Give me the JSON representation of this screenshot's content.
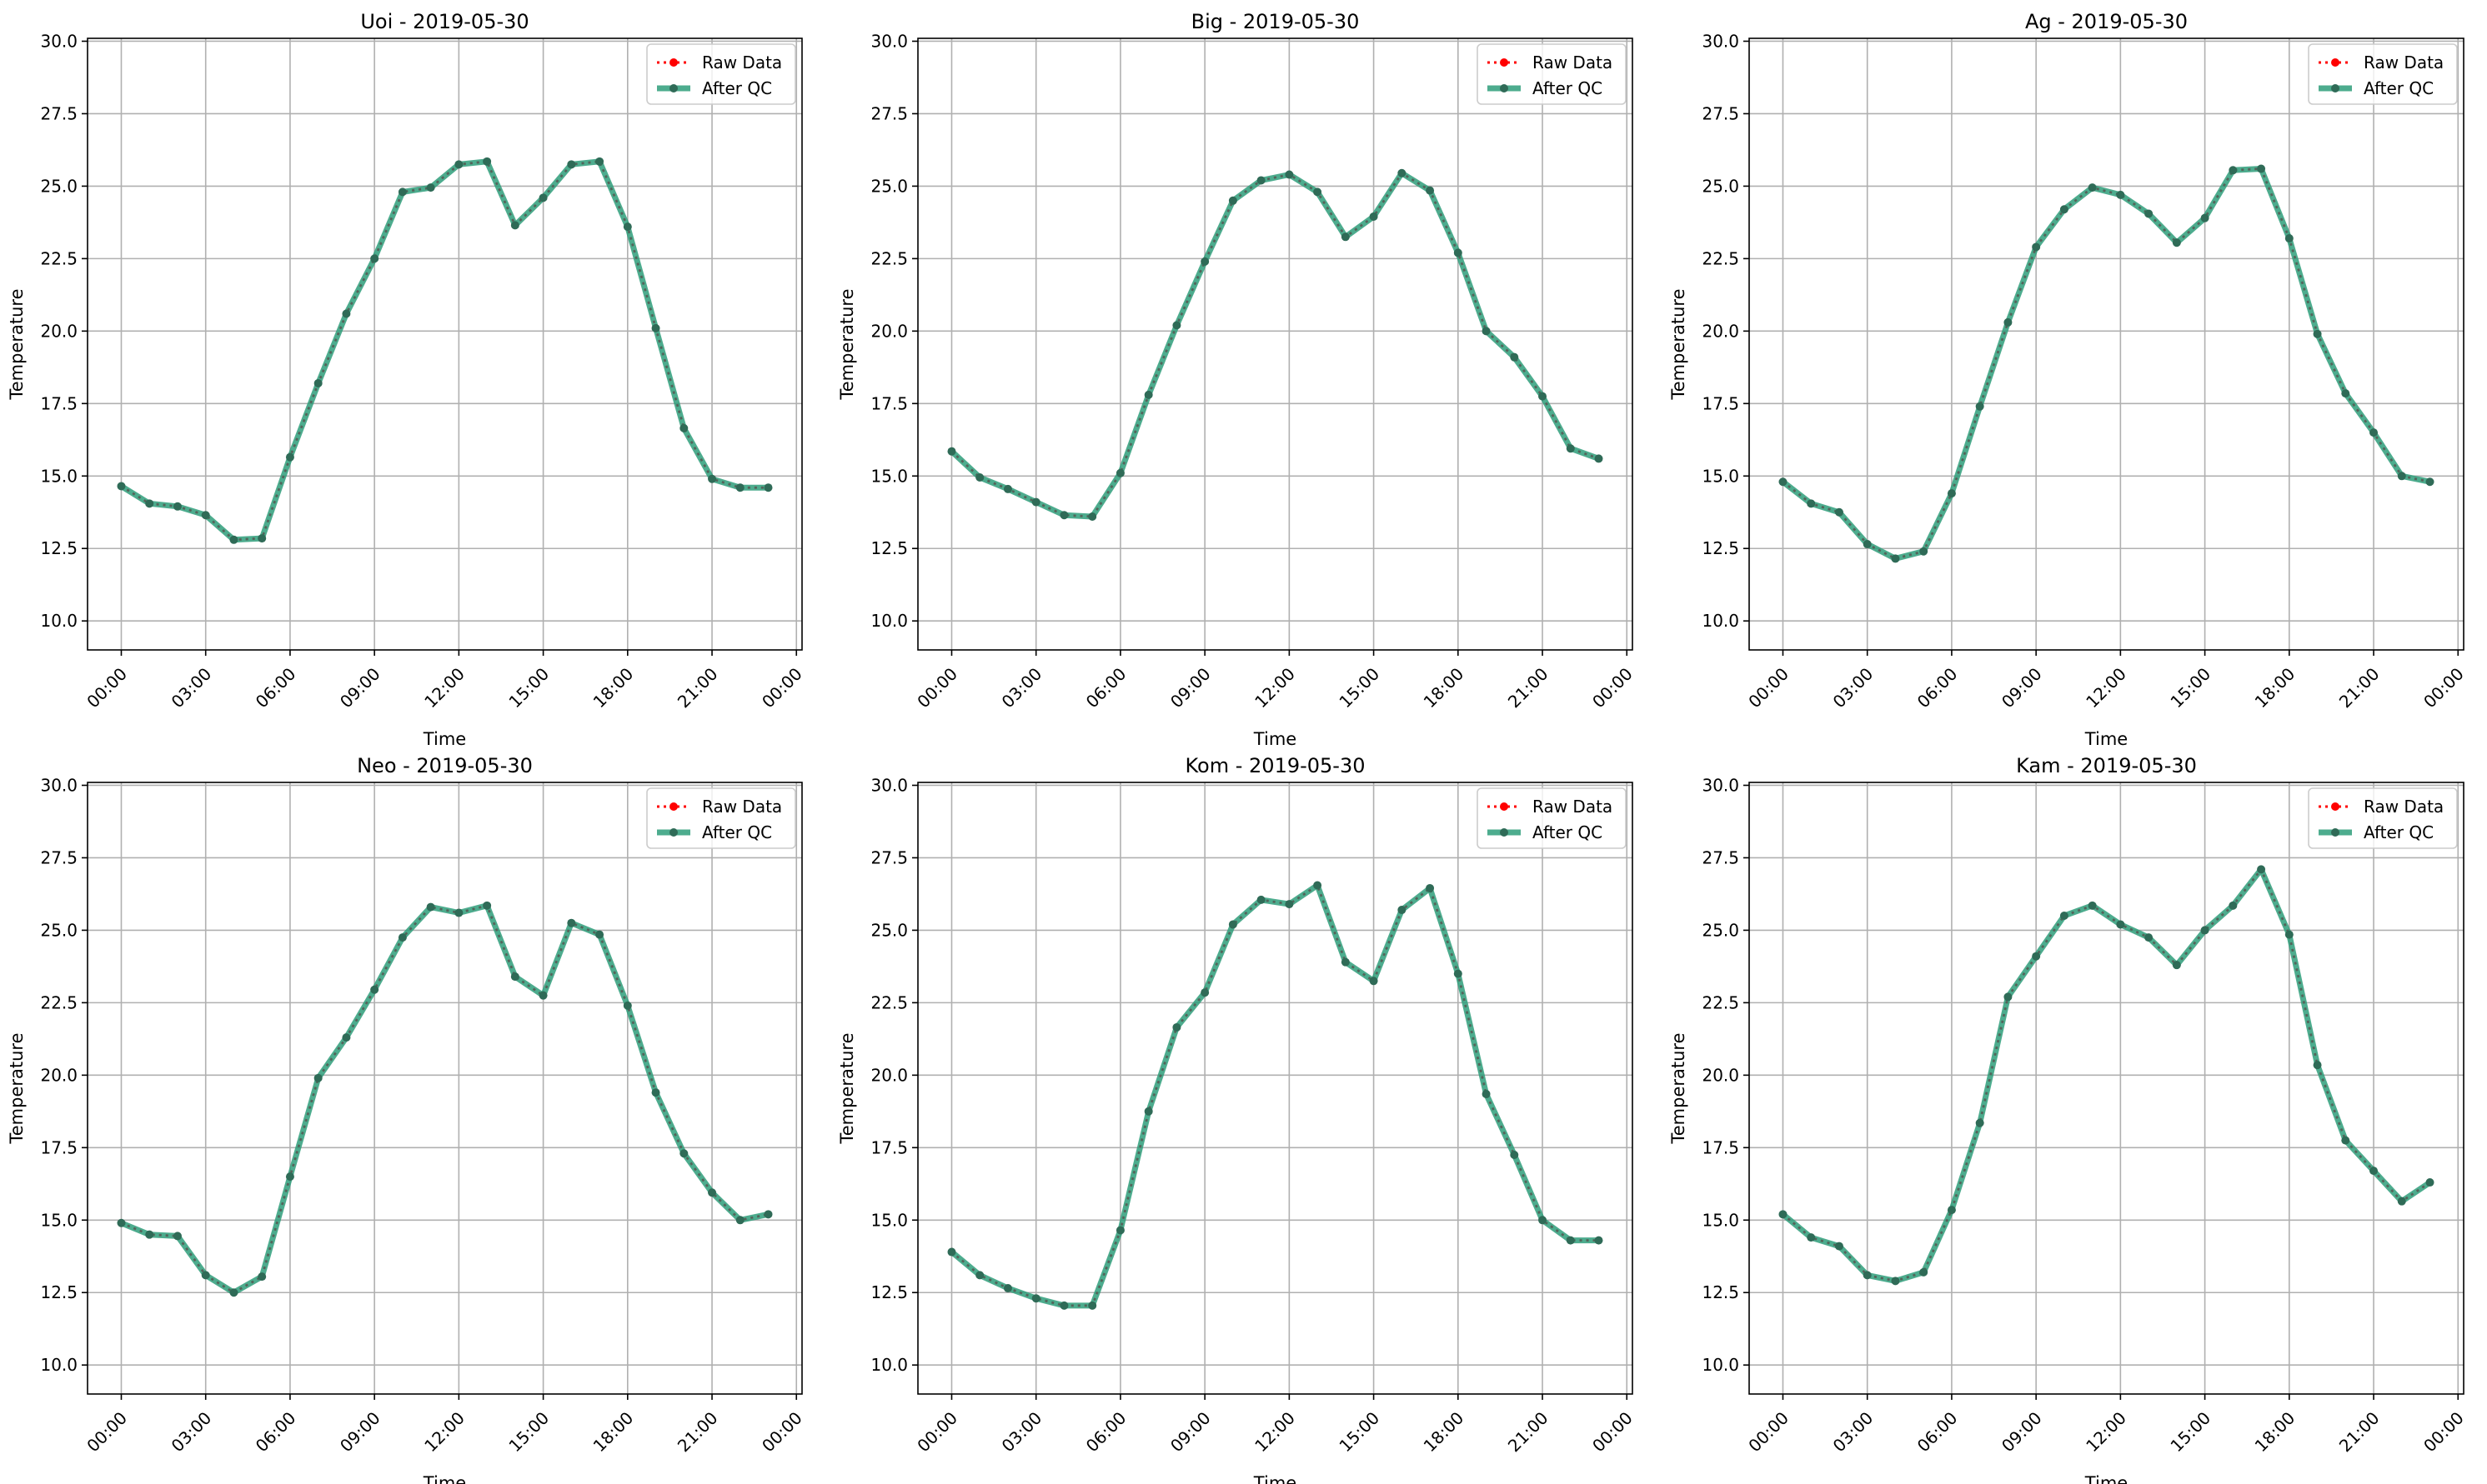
{
  "chart_data": [
    {
      "type": "line",
      "title": "Uoi - 2019-05-30",
      "xlabel": "Time",
      "ylabel": "Temperature",
      "xlim": [
        -1.2,
        24.2
      ],
      "ylim": [
        9.0,
        30.1
      ],
      "xticks": [
        0,
        3,
        6,
        9,
        12,
        15,
        18,
        21,
        24
      ],
      "xtick_labels": [
        "00:00",
        "03:00",
        "06:00",
        "09:00",
        "12:00",
        "15:00",
        "18:00",
        "21:00",
        "00:00"
      ],
      "yticks": [
        10.0,
        12.5,
        15.0,
        17.5,
        20.0,
        22.5,
        25.0,
        27.5,
        30.0
      ],
      "ytick_labels": [
        "10.0",
        "12.5",
        "15.0",
        "17.5",
        "20.0",
        "22.5",
        "25.0",
        "27.5",
        "30.0"
      ],
      "grid": true,
      "legend": "top-right",
      "x": [
        0,
        1,
        2,
        3,
        4,
        5,
        6,
        7,
        8,
        9,
        10,
        11,
        12,
        13,
        14,
        15,
        16,
        17,
        18,
        19,
        20,
        21,
        22,
        23
      ],
      "series": [
        {
          "name": "Raw Data",
          "color": "#ff0000",
          "values": [
            14.65,
            14.05,
            13.95,
            13.65,
            12.8,
            12.85,
            15.65,
            18.2,
            20.6,
            22.5,
            24.8,
            24.95,
            25.75,
            25.85,
            23.65,
            24.6,
            25.75,
            25.85,
            23.6,
            20.1,
            16.65,
            14.9,
            14.6,
            14.6
          ]
        },
        {
          "name": "After QC",
          "color": "#2e9e7a",
          "values": [
            14.65,
            14.05,
            13.95,
            13.65,
            12.8,
            12.85,
            15.65,
            18.2,
            20.6,
            22.5,
            24.8,
            24.95,
            25.75,
            25.85,
            23.65,
            24.6,
            25.75,
            25.85,
            23.6,
            20.1,
            16.65,
            14.9,
            14.6,
            14.6
          ]
        }
      ]
    },
    {
      "type": "line",
      "title": "Big - 2019-05-30",
      "xlabel": "Time",
      "ylabel": "Temperature",
      "xlim": [
        -1.2,
        24.2
      ],
      "ylim": [
        9.0,
        30.1
      ],
      "xticks": [
        0,
        3,
        6,
        9,
        12,
        15,
        18,
        21,
        24
      ],
      "xtick_labels": [
        "00:00",
        "03:00",
        "06:00",
        "09:00",
        "12:00",
        "15:00",
        "18:00",
        "21:00",
        "00:00"
      ],
      "yticks": [
        10.0,
        12.5,
        15.0,
        17.5,
        20.0,
        22.5,
        25.0,
        27.5,
        30.0
      ],
      "ytick_labels": [
        "10.0",
        "12.5",
        "15.0",
        "17.5",
        "20.0",
        "22.5",
        "25.0",
        "27.5",
        "30.0"
      ],
      "grid": true,
      "legend": "top-right",
      "x": [
        0,
        1,
        2,
        3,
        4,
        5,
        6,
        7,
        8,
        9,
        10,
        11,
        12,
        13,
        14,
        15,
        16,
        17,
        18,
        19,
        20,
        21,
        22,
        23
      ],
      "series": [
        {
          "name": "Raw Data",
          "color": "#ff0000",
          "values": [
            15.85,
            14.95,
            14.55,
            14.1,
            13.65,
            13.6,
            15.1,
            17.8,
            20.2,
            22.4,
            24.5,
            25.2,
            25.4,
            24.8,
            23.25,
            23.95,
            25.45,
            24.85,
            22.7,
            20.0,
            19.1,
            17.75,
            15.95,
            15.6
          ]
        },
        {
          "name": "After QC",
          "color": "#2e9e7a",
          "values": [
            15.85,
            14.95,
            14.55,
            14.1,
            13.65,
            13.6,
            15.1,
            17.8,
            20.2,
            22.4,
            24.5,
            25.2,
            25.4,
            24.8,
            23.25,
            23.95,
            25.45,
            24.85,
            22.7,
            20.0,
            19.1,
            17.75,
            15.95,
            15.6
          ]
        }
      ]
    },
    {
      "type": "line",
      "title": "Ag - 2019-05-30",
      "xlabel": "Time",
      "ylabel": "Temperature",
      "xlim": [
        -1.2,
        24.2
      ],
      "ylim": [
        9.0,
        30.1
      ],
      "xticks": [
        0,
        3,
        6,
        9,
        12,
        15,
        18,
        21,
        24
      ],
      "xtick_labels": [
        "00:00",
        "03:00",
        "06:00",
        "09:00",
        "12:00",
        "15:00",
        "18:00",
        "21:00",
        "00:00"
      ],
      "yticks": [
        10.0,
        12.5,
        15.0,
        17.5,
        20.0,
        22.5,
        25.0,
        27.5,
        30.0
      ],
      "ytick_labels": [
        "10.0",
        "12.5",
        "15.0",
        "17.5",
        "20.0",
        "22.5",
        "25.0",
        "27.5",
        "30.0"
      ],
      "grid": true,
      "legend": "top-right",
      "x": [
        0,
        1,
        2,
        3,
        4,
        5,
        6,
        7,
        8,
        9,
        10,
        11,
        12,
        13,
        14,
        15,
        16,
        17,
        18,
        19,
        20,
        21,
        22,
        23
      ],
      "series": [
        {
          "name": "Raw Data",
          "color": "#ff0000",
          "values": [
            14.8,
            14.05,
            13.75,
            12.65,
            12.15,
            12.4,
            14.4,
            17.4,
            20.3,
            22.9,
            24.2,
            24.95,
            24.7,
            24.05,
            23.05,
            23.9,
            25.55,
            25.6,
            23.2,
            19.9,
            17.85,
            16.5,
            15.0,
            14.8
          ]
        },
        {
          "name": "After QC",
          "color": "#2e9e7a",
          "values": [
            14.8,
            14.05,
            13.75,
            12.65,
            12.15,
            12.4,
            14.4,
            17.4,
            20.3,
            22.9,
            24.2,
            24.95,
            24.7,
            24.05,
            23.05,
            23.9,
            25.55,
            25.6,
            23.2,
            19.9,
            17.85,
            16.5,
            15.0,
            14.8
          ]
        }
      ]
    },
    {
      "type": "line",
      "title": "Neo - 2019-05-30",
      "xlabel": "Time",
      "ylabel": "Temperature",
      "xlim": [
        -1.2,
        24.2
      ],
      "ylim": [
        9.0,
        30.1
      ],
      "xticks": [
        0,
        3,
        6,
        9,
        12,
        15,
        18,
        21,
        24
      ],
      "xtick_labels": [
        "00:00",
        "03:00",
        "06:00",
        "09:00",
        "12:00",
        "15:00",
        "18:00",
        "21:00",
        "00:00"
      ],
      "yticks": [
        10.0,
        12.5,
        15.0,
        17.5,
        20.0,
        22.5,
        25.0,
        27.5,
        30.0
      ],
      "ytick_labels": [
        "10.0",
        "12.5",
        "15.0",
        "17.5",
        "20.0",
        "22.5",
        "25.0",
        "27.5",
        "30.0"
      ],
      "grid": true,
      "legend": "top-right",
      "x": [
        0,
        1,
        2,
        3,
        4,
        5,
        6,
        7,
        8,
        9,
        10,
        11,
        12,
        13,
        14,
        15,
        16,
        17,
        18,
        19,
        20,
        21,
        22,
        23
      ],
      "series": [
        {
          "name": "Raw Data",
          "color": "#ff0000",
          "values": [
            14.9,
            14.5,
            14.45,
            13.1,
            12.5,
            13.05,
            16.5,
            19.9,
            21.3,
            22.95,
            24.75,
            25.8,
            25.6,
            25.85,
            23.4,
            22.75,
            25.25,
            24.85,
            22.4,
            19.4,
            17.3,
            15.95,
            15.0,
            15.2
          ]
        },
        {
          "name": "After QC",
          "color": "#2e9e7a",
          "values": [
            14.9,
            14.5,
            14.45,
            13.1,
            12.5,
            13.05,
            16.5,
            19.9,
            21.3,
            22.95,
            24.75,
            25.8,
            25.6,
            25.85,
            23.4,
            22.75,
            25.25,
            24.85,
            22.4,
            19.4,
            17.3,
            15.95,
            15.0,
            15.2
          ]
        }
      ]
    },
    {
      "type": "line",
      "title": "Kom - 2019-05-30",
      "xlabel": "Time",
      "ylabel": "Temperature",
      "xlim": [
        -1.2,
        24.2
      ],
      "ylim": [
        9.0,
        30.1
      ],
      "xticks": [
        0,
        3,
        6,
        9,
        12,
        15,
        18,
        21,
        24
      ],
      "xtick_labels": [
        "00:00",
        "03:00",
        "06:00",
        "09:00",
        "12:00",
        "15:00",
        "18:00",
        "21:00",
        "00:00"
      ],
      "yticks": [
        10.0,
        12.5,
        15.0,
        17.5,
        20.0,
        22.5,
        25.0,
        27.5,
        30.0
      ],
      "ytick_labels": [
        "10.0",
        "12.5",
        "15.0",
        "17.5",
        "20.0",
        "22.5",
        "25.0",
        "27.5",
        "30.0"
      ],
      "grid": true,
      "legend": "top-right",
      "x": [
        0,
        1,
        2,
        3,
        4,
        5,
        6,
        7,
        8,
        9,
        10,
        11,
        12,
        13,
        14,
        15,
        16,
        17,
        18,
        19,
        20,
        21,
        22,
        23
      ],
      "series": [
        {
          "name": "Raw Data",
          "color": "#ff0000",
          "values": [
            13.9,
            13.1,
            12.65,
            12.3,
            12.05,
            12.05,
            14.65,
            18.75,
            21.65,
            22.85,
            25.2,
            26.05,
            25.9,
            26.55,
            23.9,
            23.25,
            25.7,
            26.45,
            23.5,
            19.35,
            17.25,
            15.0,
            14.3,
            14.3
          ]
        },
        {
          "name": "After QC",
          "color": "#2e9e7a",
          "values": [
            13.9,
            13.1,
            12.65,
            12.3,
            12.05,
            12.05,
            14.65,
            18.75,
            21.65,
            22.85,
            25.2,
            26.05,
            25.9,
            26.55,
            23.9,
            23.25,
            25.7,
            26.45,
            23.5,
            19.35,
            17.25,
            15.0,
            14.3,
            14.3
          ]
        }
      ]
    },
    {
      "type": "line",
      "title": "Kam - 2019-05-30",
      "xlabel": "Time",
      "ylabel": "Temperature",
      "xlim": [
        -1.2,
        24.2
      ],
      "ylim": [
        9.0,
        30.1
      ],
      "xticks": [
        0,
        3,
        6,
        9,
        12,
        15,
        18,
        21,
        24
      ],
      "xtick_labels": [
        "00:00",
        "03:00",
        "06:00",
        "09:00",
        "12:00",
        "15:00",
        "18:00",
        "21:00",
        "00:00"
      ],
      "yticks": [
        10.0,
        12.5,
        15.0,
        17.5,
        20.0,
        22.5,
        25.0,
        27.5,
        30.0
      ],
      "ytick_labels": [
        "10.0",
        "12.5",
        "15.0",
        "17.5",
        "20.0",
        "22.5",
        "25.0",
        "27.5",
        "30.0"
      ],
      "grid": true,
      "legend": "top-right",
      "x": [
        0,
        1,
        2,
        3,
        4,
        5,
        6,
        7,
        8,
        9,
        10,
        11,
        12,
        13,
        14,
        15,
        16,
        17,
        18,
        19,
        20,
        21,
        22,
        23
      ],
      "series": [
        {
          "name": "Raw Data",
          "color": "#ff0000",
          "values": [
            15.2,
            14.4,
            14.1,
            13.1,
            12.9,
            13.2,
            15.35,
            18.35,
            22.7,
            24.1,
            25.5,
            25.85,
            25.2,
            24.75,
            23.8,
            25.0,
            25.85,
            27.1,
            24.85,
            20.35,
            17.75,
            16.7,
            15.65,
            16.3
          ]
        },
        {
          "name": "After QC",
          "color": "#2e9e7a",
          "values": [
            15.2,
            14.4,
            14.1,
            13.1,
            12.9,
            13.2,
            15.35,
            18.35,
            22.7,
            24.1,
            25.5,
            25.85,
            25.2,
            24.75,
            23.8,
            25.0,
            25.85,
            27.1,
            24.85,
            20.35,
            17.75,
            16.7,
            15.65,
            16.3
          ]
        }
      ]
    }
  ]
}
